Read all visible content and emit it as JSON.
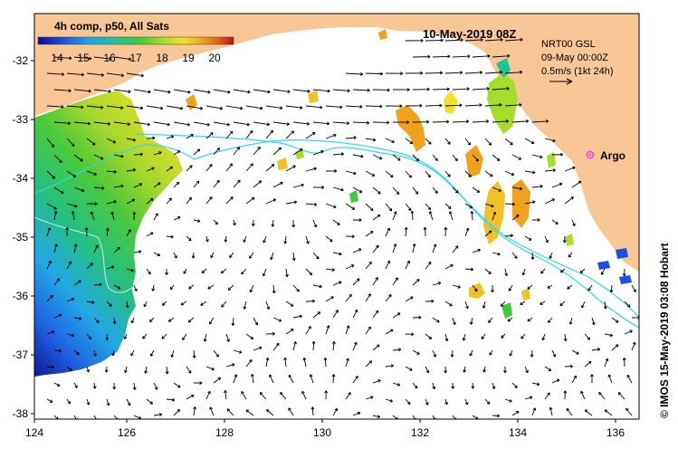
{
  "map": {
    "title": "10-May-2019 08Z",
    "colorbar": {
      "title": "4h comp, p50, All Sats",
      "tick_labels": [
        "14",
        "15",
        "16",
        "17",
        "18",
        "19",
        "20"
      ],
      "colors": [
        "#0a0a8a",
        "#1b4fe0",
        "#21a6e8",
        "#23c39a",
        "#3fcc3a",
        "#a6dc2a",
        "#f2e227",
        "#f0a21c",
        "#e5581a",
        "#b91414"
      ]
    },
    "current_info": {
      "line1": "NRT00 GSL",
      "line2": "09-May 00:00Z",
      "scale_label": "0.5m/s (1kt 24h)"
    },
    "argo_label": "Argo",
    "credit": "© IMOS 15-May-2019 03:08 Hobart",
    "x_ticks": [
      "124",
      "126",
      "128",
      "130",
      "132",
      "134",
      "136"
    ],
    "y_ticks": [
      "-32",
      "-33",
      "-34",
      "-35",
      "-36",
      "-37",
      "-38"
    ],
    "colors": {
      "land": "#f9c796",
      "contour": "#31d9e6",
      "argo": "#ff33ff",
      "arrow": "#000000"
    }
  }
}
